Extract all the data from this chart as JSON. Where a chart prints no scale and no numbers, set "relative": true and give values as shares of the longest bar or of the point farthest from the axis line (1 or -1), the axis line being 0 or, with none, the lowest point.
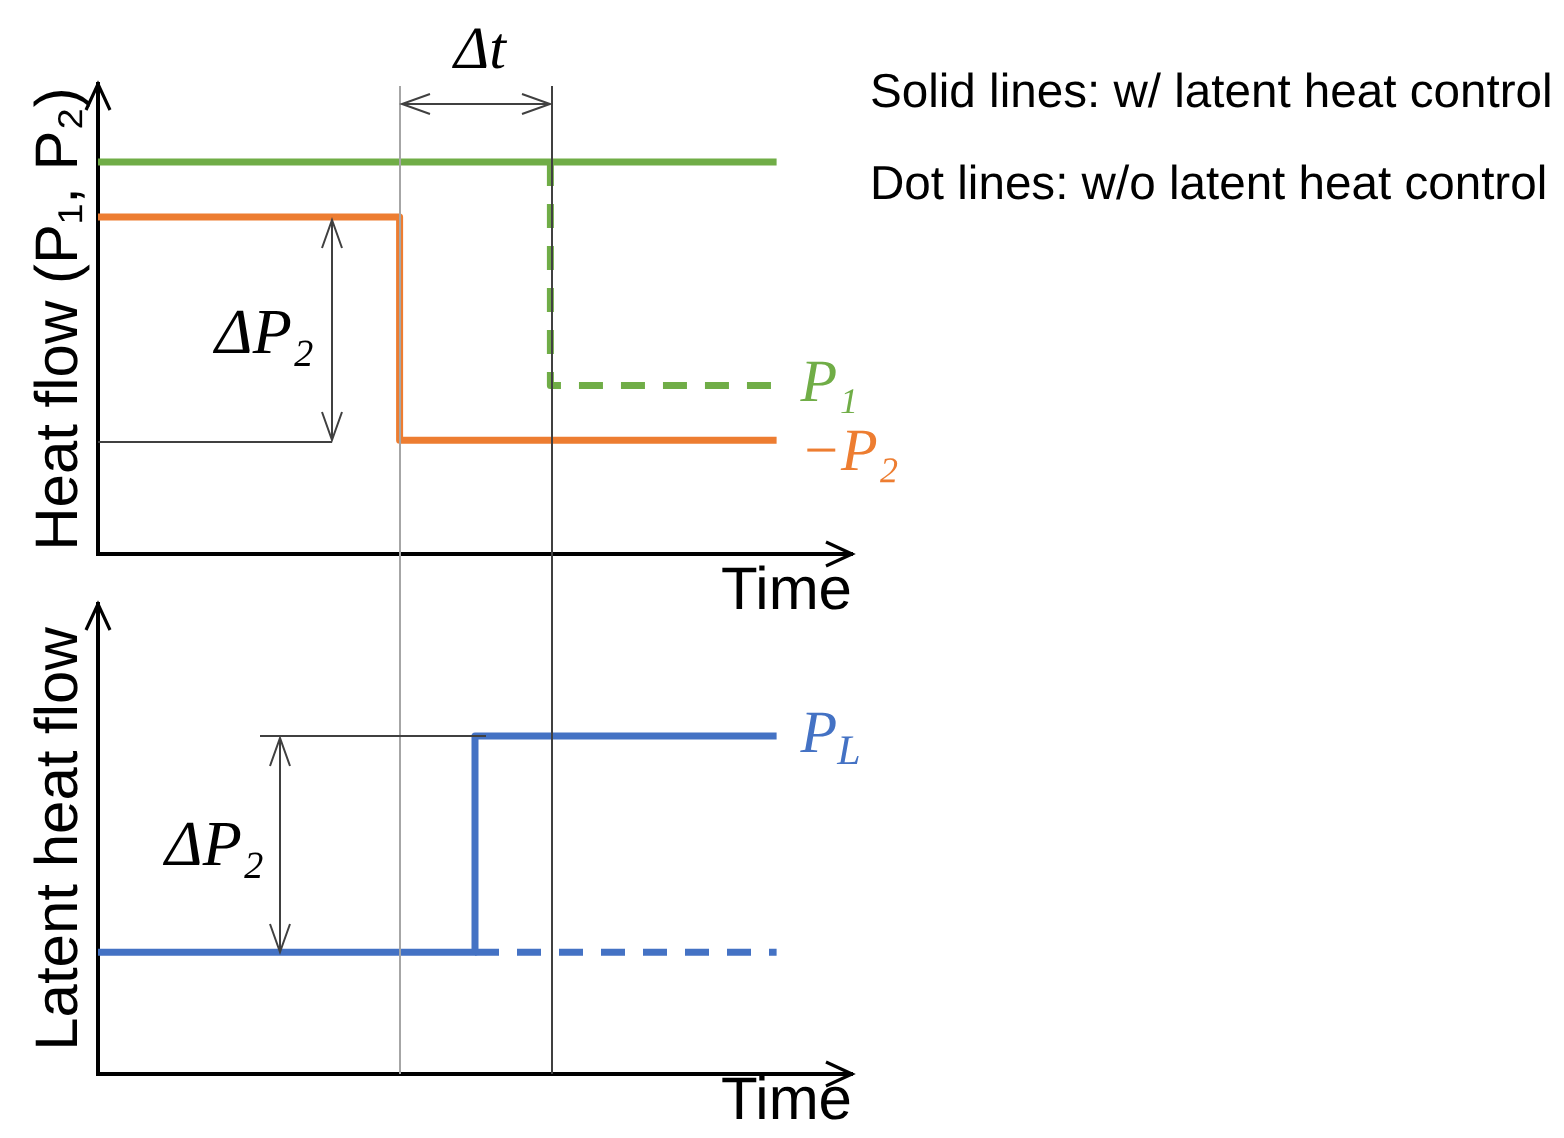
{
  "chart_data": [
    {
      "type": "step",
      "relative": true,
      "ylabel": "Heat flow (P₁, P₂)",
      "xlabel": "Time",
      "categories": [
        null,
        null,
        null,
        null,
        null,
        null,
        null,
        null,
        null,
        null,
        null
      ],
      "series": [
        {
          "color": "#70ad47",
          "line_style": "solid",
          "values": [
            1,
            1,
            1,
            1,
            1,
            1,
            1,
            1,
            1,
            1,
            null
          ]
        },
        {
          "name": "P₁",
          "color": "#70ad47",
          "line_style": "dashed",
          "values": [
            null,
            null,
            null,
            null,
            null,
            null,
            1,
            0.43,
            0.43,
            0.43,
            null
          ]
        },
        {
          "name": "−P₂",
          "color": "#ed7d31",
          "line_style": "solid",
          "values": [
            0.86,
            0.86,
            0.86,
            0.86,
            0.86,
            0.29,
            0.29,
            0.29,
            0.29,
            0.29,
            null
          ]
        }
      ],
      "annotations": [
        "Solid lines: w/ latent heat control",
        "Dot lines: w/o latent heat control",
        "Δt",
        "ΔP₂"
      ]
    },
    {
      "type": "step",
      "relative": true,
      "ylabel": "Latent heat flow",
      "xlabel": "Time",
      "categories": [
        null,
        null,
        null,
        null,
        null,
        null,
        null,
        null,
        null,
        null,
        null
      ],
      "series": [
        {
          "name": "P$_{L}$",
          "color": "#4472c4",
          "line_style": "solid",
          "values": [
            0.36,
            0.36,
            0.36,
            0.36,
            0.36,
            0.36,
            1,
            1,
            1,
            1,
            null
          ]
        },
        {
          "color": "#4472c4",
          "line_style": "dashed",
          "values": [
            null,
            null,
            null,
            null,
            null,
            0.36,
            0.36,
            0.36,
            0.36,
            0.36,
            null
          ]
        }
      ],
      "annotations": [
        "ΔP₂"
      ]
    }
  ]
}
